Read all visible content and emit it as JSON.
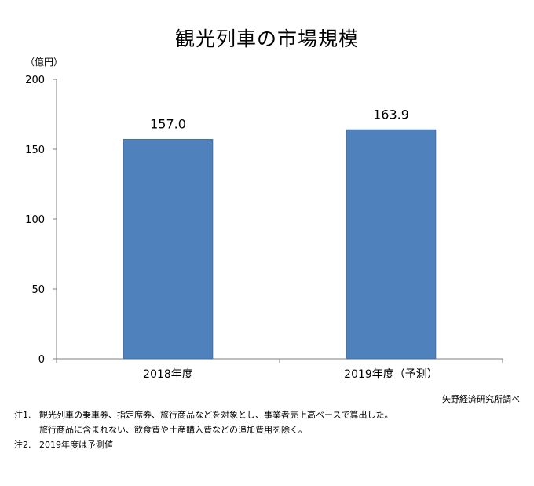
{
  "chart_data": {
    "type": "bar",
    "title": "観光列車の市場規模",
    "unit_label": "（億円）",
    "categories": [
      "2018年度",
      "2019年度（予測）"
    ],
    "values": [
      157.0,
      163.9
    ],
    "value_labels": [
      "157.0",
      "163.9"
    ],
    "ylim": [
      0,
      200
    ],
    "yticks": [
      0,
      50,
      100,
      150,
      200
    ],
    "xlabel": "",
    "ylabel": "（億円）",
    "grid": false,
    "bar_color": "#4f81bd",
    "bar_border_color": "#3f6fa8"
  },
  "source": "矢野経済研究所調べ",
  "notes": [
    {
      "label": "注1.",
      "lines": [
        "観光列車の乗車券、指定席券、旅行商品などを対象とし、事業者売上高ベースで算出した。",
        "旅行商品に含まれない、飲食費や土産購入費などの追加費用を除く。"
      ]
    },
    {
      "label": "注2.",
      "lines": [
        "2019年度は予測値"
      ]
    }
  ]
}
